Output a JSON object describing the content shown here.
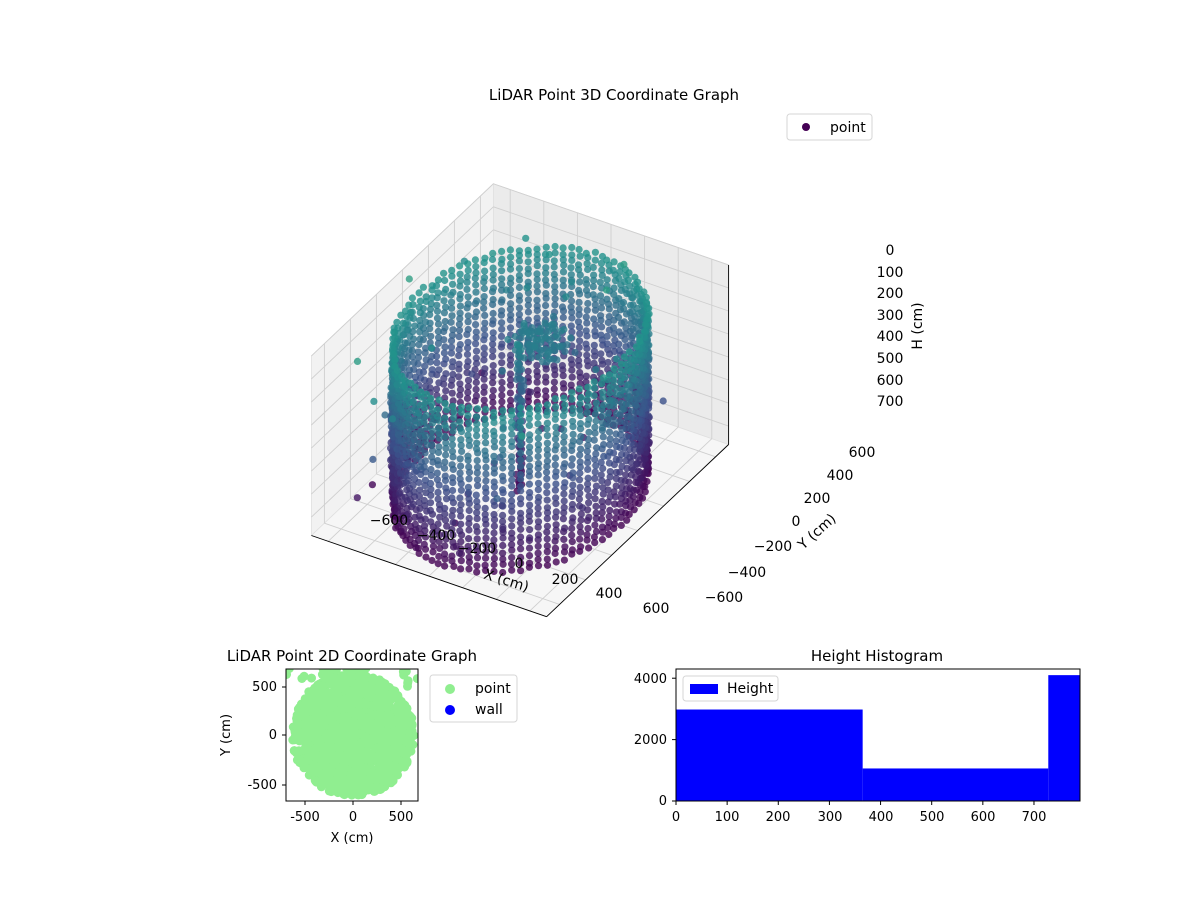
{
  "chart_data": [
    {
      "type": "scatter",
      "subtype": "3d",
      "title": "LiDAR Point 3D Coordinate Graph",
      "xlabel": "X (cm)",
      "ylabel": "Y (cm)",
      "zlabel": "H (cm)",
      "xlim": [
        -700,
        700
      ],
      "ylim": [
        -700,
        700
      ],
      "zlim": [
        0,
        780
      ],
      "z_inverted": true,
      "x_ticks": [
        "−600",
        "−400",
        "−200",
        "0",
        "200",
        "400",
        "600"
      ],
      "y_ticks": [
        "−600",
        "−400",
        "−200",
        "0",
        "200",
        "400",
        "600"
      ],
      "z_ticks": [
        "0",
        "100",
        "200",
        "300",
        "400",
        "500",
        "600",
        "700"
      ],
      "grid": true,
      "colormap": "viridis",
      "legend": {
        "position": "top-right",
        "entries": [
          {
            "label": "point",
            "color": "#440154"
          }
        ]
      },
      "series": [
        {
          "name": "point",
          "description_shape": "cylindrical wall of points, radius about 600 cm, height 0-700 cm, with a central vertical column and scattered outliers",
          "sample_points": [
            [
              -600,
              0,
              50
            ],
            [
              -600,
              0,
              350
            ],
            [
              -600,
              0,
              700
            ],
            [
              0,
              -600,
              0
            ],
            [
              0,
              -600,
              700
            ],
            [
              600,
              0,
              100
            ],
            [
              600,
              0,
              700
            ],
            [
              424,
              424,
              200
            ],
            [
              -424,
              -424,
              600
            ],
            [
              0,
              0,
              600
            ],
            [
              0,
              0,
              300
            ],
            [
              0,
              0,
              0
            ],
            [
              -700,
              650,
              750
            ],
            [
              650,
              -700,
              650
            ],
            [
              -650,
              700,
              100
            ]
          ]
        }
      ]
    },
    {
      "type": "scatter",
      "title": "LiDAR Point 2D Coordinate Graph",
      "xlabel": "X (cm)",
      "ylabel": "Y (cm)",
      "xlim": [
        -800,
        800
      ],
      "ylim": [
        -800,
        800
      ],
      "x_ticks": [
        -500,
        0,
        500
      ],
      "y_ticks": [
        -500,
        0,
        500
      ],
      "legend": {
        "position": "outside-right",
        "entries": [
          {
            "label": "point",
            "color": "#90ee90"
          },
          {
            "label": "wall",
            "color": "#0000ff"
          }
        ]
      }
    },
    {
      "type": "histogram",
      "title": "Height Histogram",
      "xlim": [
        0,
        790
      ],
      "ylim": [
        0,
        4300
      ],
      "x_ticks": [
        0,
        100,
        200,
        300,
        400,
        500,
        600,
        700
      ],
      "y_ticks": [
        0,
        2000,
        4000
      ],
      "legend": {
        "position": "top-left",
        "entries": [
          {
            "label": "Height",
            "color": "#0000ff"
          }
        ]
      },
      "series": [
        {
          "name": "Height",
          "color": "#0000ff",
          "bins": [
            {
              "from": 0,
              "to": 365,
              "count": 2980
            },
            {
              "from": 365,
              "to": 728,
              "count": 1060
            },
            {
              "from": 728,
              "to": 790,
              "count": 4100
            }
          ]
        }
      ]
    }
  ]
}
